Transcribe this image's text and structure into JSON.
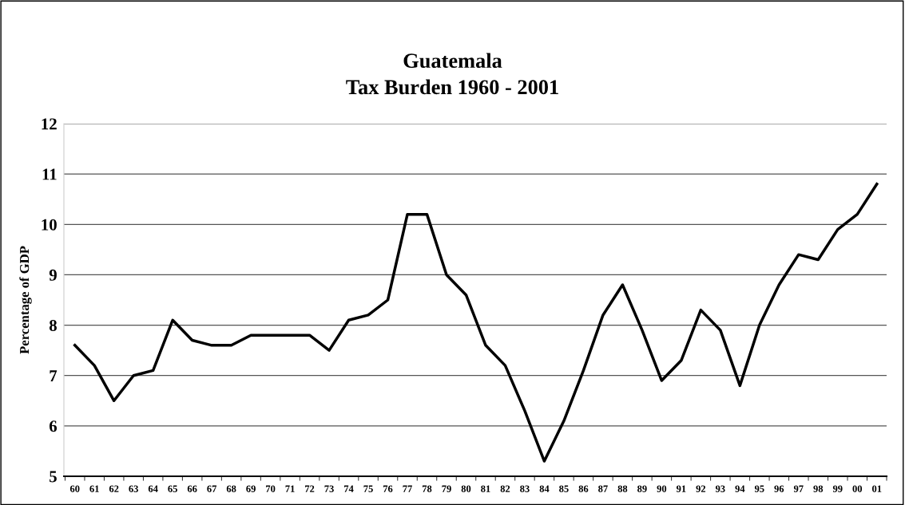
{
  "chart_data": {
    "type": "line",
    "title": "Guatemala\nTax Burden 1960 - 2001",
    "ylabel": "Percentage of GDP",
    "categories": [
      "60",
      "61",
      "62",
      "63",
      "64",
      "65",
      "66",
      "67",
      "68",
      "69",
      "70",
      "71",
      "72",
      "73",
      "74",
      "75",
      "76",
      "77",
      "78",
      "79",
      "80",
      "81",
      "82",
      "83",
      "84",
      "85",
      "86",
      "87",
      "88",
      "89",
      "90",
      "91",
      "92",
      "93",
      "94",
      "95",
      "96",
      "97",
      "98",
      "99",
      "00",
      "01"
    ],
    "series": [
      {
        "color": "#000000",
        "values": [
          7.6,
          7.2,
          6.5,
          7.0,
          7.1,
          8.1,
          7.7,
          7.6,
          7.6,
          7.8,
          7.8,
          7.8,
          7.8,
          7.5,
          8.1,
          8.2,
          8.5,
          10.2,
          10.2,
          9.0,
          8.6,
          7.6,
          7.2,
          6.3,
          5.3,
          6.1,
          7.1,
          8.2,
          8.8,
          7.9,
          6.9,
          7.3,
          8.3,
          7.9,
          6.8,
          8.0,
          8.8,
          9.4,
          9.3,
          9.9,
          10.2,
          10.8
        ]
      }
    ],
    "ylim": [
      5,
      12
    ],
    "yticks": [
      5,
      6,
      7,
      8,
      9,
      10,
      11,
      12
    ],
    "grid": "y",
    "legend": false,
    "marker": "none",
    "line_style": "solid"
  }
}
